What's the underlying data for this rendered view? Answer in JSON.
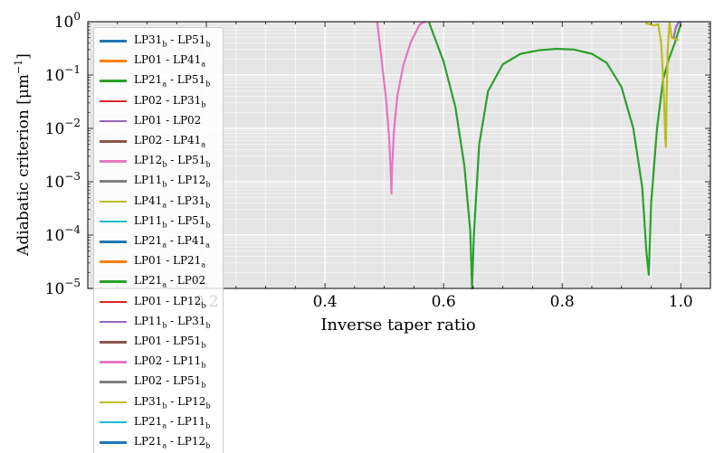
{
  "chart_data": {
    "type": "line",
    "xlabel": "Inverse taper ratio",
    "ylabel": "Adiabatic criterion [μm⁻¹]",
    "ylabel_base": "Adiabatic criterion [μm",
    "ylabel_exp": "−1",
    "ylabel_tail": "]",
    "xlim": [
      0.0,
      1.05
    ],
    "ylim": [
      1e-05,
      1.0
    ],
    "yscale": "log",
    "grid": true,
    "legend_placement": "upper-left",
    "xticks": [
      0.2,
      0.4,
      0.6,
      0.8,
      1.0
    ],
    "xtick_labels": [
      "0.2",
      "0.4",
      "0.6",
      "0.8",
      "1.0"
    ],
    "yticks": [
      1e-05,
      0.0001,
      0.001,
      0.01,
      0.1,
      1.0
    ],
    "ytick_exponents": [
      "−5",
      "−4",
      "−3",
      "−2",
      "−1",
      "0"
    ],
    "ytick_base": "10",
    "colors": [
      "#1f77b4",
      "#ff7f0e",
      "#2ca02c",
      "#d62728",
      "#9467bd",
      "#8c564b",
      "#e377c2",
      "#7f7f7f",
      "#bcbd22",
      "#17becf"
    ],
    "series": [
      {
        "name": "LP31_b - LP51_b",
        "x": [],
        "y": []
      },
      {
        "name": "LP01 - LP41_a",
        "x": [],
        "y": []
      },
      {
        "name": "LP21_a - LP51_b",
        "x": [
          0.575,
          0.6,
          0.62,
          0.635,
          0.645,
          0.648,
          0.651,
          0.66,
          0.675,
          0.7,
          0.73,
          0.76,
          0.79,
          0.82,
          0.85,
          0.875,
          0.9,
          0.92,
          0.935,
          0.942,
          0.946,
          0.95,
          0.96,
          0.97,
          0.98,
          0.99,
          1.0
        ],
        "y": [
          1.0,
          0.18,
          0.025,
          0.002,
          0.00012,
          1e-05,
          0.0001,
          0.005,
          0.05,
          0.16,
          0.25,
          0.29,
          0.31,
          0.3,
          0.25,
          0.17,
          0.06,
          0.01,
          0.0008,
          5e-05,
          1.8e-05,
          0.0004,
          0.01,
          0.08,
          0.2,
          0.4,
          0.9
        ]
      },
      {
        "name": "LP02 - LP31_b",
        "x": [],
        "y": []
      },
      {
        "name": "LP01 - LP02",
        "x": [],
        "y": []
      },
      {
        "name": "LP02 - LP41_a",
        "x": [],
        "y": []
      },
      {
        "name": "LP12_b - LP51_b",
        "x": [
          0.488,
          0.495,
          0.503,
          0.508,
          0.511,
          0.512,
          0.513,
          0.516,
          0.522,
          0.532,
          0.545,
          0.56,
          0.57
        ],
        "y": [
          1.0,
          0.22,
          0.035,
          0.007,
          0.0015,
          0.0006,
          0.0015,
          0.008,
          0.04,
          0.15,
          0.42,
          0.9,
          1.0
        ]
      },
      {
        "name": "LP11_b - LP12_b",
        "x": [],
        "y": []
      },
      {
        "name": "LP41_a - LP31_b",
        "x": [
          0.94,
          0.955,
          0.962,
          0.967,
          0.97,
          0.972,
          0.974,
          0.975,
          0.976,
          0.978,
          0.981,
          0.985,
          0.99,
          0.996
        ],
        "y": [
          0.95,
          0.85,
          0.9,
          0.4,
          0.1,
          0.03,
          0.006,
          0.0045,
          0.03,
          0.3,
          0.95,
          0.5,
          0.48,
          0.45
        ]
      },
      {
        "name": "LP11_b - LP51_b",
        "x": [],
        "y": []
      },
      {
        "name": "LP21_a - LP41_a",
        "x": [],
        "y": []
      },
      {
        "name": "LP01 - LP21_a",
        "x": [],
        "y": []
      },
      {
        "name": "LP21_a - LP02",
        "x": [],
        "y": []
      },
      {
        "name": "LP01 - LP12_b",
        "x": [],
        "y": []
      },
      {
        "name": "LP11_b - LP31_b",
        "x": [
          0.988,
          0.992,
          0.996,
          0.999
        ],
        "y": [
          0.5,
          0.8,
          0.95,
          1.0
        ]
      },
      {
        "name": "LP01 - LP51_b",
        "x": [],
        "y": []
      },
      {
        "name": "LP02 - LP11_b",
        "x": [],
        "y": []
      },
      {
        "name": "LP02 - LP51_b",
        "x": [],
        "y": []
      },
      {
        "name": "LP31_b - LP12_b",
        "x": [],
        "y": []
      },
      {
        "name": "LP21_a - LP11_b",
        "x": [],
        "y": []
      },
      {
        "name": "LP21_a - LP12_b",
        "x": [],
        "y": []
      }
    ],
    "legend": [
      {
        "main1": "LP31",
        "sub1": "b",
        "main2": " - LP51",
        "sub2": "b"
      },
      {
        "main1": "LP01",
        "sub1": "",
        "main2": " - LP41",
        "sub2": "a"
      },
      {
        "main1": "LP21",
        "sub1": "a",
        "main2": " - LP51",
        "sub2": "b"
      },
      {
        "main1": "LP02",
        "sub1": "",
        "main2": " - LP31",
        "sub2": "b"
      },
      {
        "main1": "LP01",
        "sub1": "",
        "main2": " - LP02",
        "sub2": ""
      },
      {
        "main1": "LP02",
        "sub1": "",
        "main2": " - LP41",
        "sub2": "a"
      },
      {
        "main1": "LP12",
        "sub1": "b",
        "main2": " - LP51",
        "sub2": "b"
      },
      {
        "main1": "LP11",
        "sub1": "b",
        "main2": " - LP12",
        "sub2": "b"
      },
      {
        "main1": "LP41",
        "sub1": "a",
        "main2": " - LP31",
        "sub2": "b"
      },
      {
        "main1": "LP11",
        "sub1": "b",
        "main2": " - LP51",
        "sub2": "b"
      },
      {
        "main1": "LP21",
        "sub1": "a",
        "main2": " - LP41",
        "sub2": "a"
      },
      {
        "main1": "LP01",
        "sub1": "",
        "main2": " - LP21",
        "sub2": "a"
      },
      {
        "main1": "LP21",
        "sub1": "a",
        "main2": " - LP02",
        "sub2": ""
      },
      {
        "main1": "LP01",
        "sub1": "",
        "main2": " - LP12",
        "sub2": "b"
      },
      {
        "main1": "LP11",
        "sub1": "b",
        "main2": " - LP31",
        "sub2": "b"
      },
      {
        "main1": "LP01",
        "sub1": "",
        "main2": " - LP51",
        "sub2": "b"
      },
      {
        "main1": "LP02",
        "sub1": "",
        "main2": " - LP11",
        "sub2": "b"
      },
      {
        "main1": "LP02",
        "sub1": "",
        "main2": " - LP51",
        "sub2": "b"
      },
      {
        "main1": "LP31",
        "sub1": "b",
        "main2": " - LP12",
        "sub2": "b"
      },
      {
        "main1": "LP21",
        "sub1": "a",
        "main2": " - LP11",
        "sub2": "b"
      },
      {
        "main1": "LP21",
        "sub1": "a",
        "main2": " - LP12",
        "sub2": "b"
      }
    ]
  }
}
